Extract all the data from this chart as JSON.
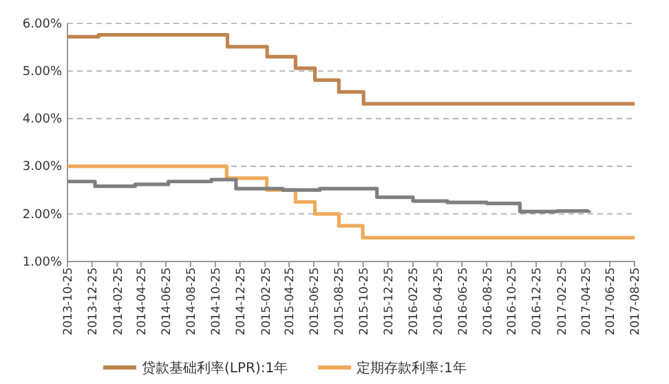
{
  "chart_data": {
    "type": "step",
    "ylim": [
      1,
      6
    ],
    "yticks": [
      {
        "value": 1,
        "label": "1.00%"
      },
      {
        "value": 2,
        "label": "2.00%"
      },
      {
        "value": 3,
        "label": "3.00%"
      },
      {
        "value": 4,
        "label": "4.00%"
      },
      {
        "value": 5,
        "label": "5.00%"
      },
      {
        "value": 6,
        "label": "6.00%"
      }
    ],
    "xlim": [
      "2013-10-25",
      "2017-08-25"
    ],
    "xticks": [
      "2013-10-25",
      "2013-12-25",
      "2014-02-25",
      "2014-04-25",
      "2014-06-25",
      "2014-08-25",
      "2014-10-25",
      "2014-12-25",
      "2015-02-25",
      "2015-04-25",
      "2015-06-25",
      "2015-08-25",
      "2015-10-25",
      "2015-12-25",
      "2016-02-25",
      "2016-04-25",
      "2016-06-25",
      "2016-08-25",
      "2016-10-25",
      "2016-12-25",
      "2017-02-25",
      "2017-04-25",
      "2017-06-25",
      "2017-08-25"
    ],
    "grid": "y",
    "legend": "bottom",
    "line_style": "solid",
    "marker": "none",
    "series": [
      {
        "name": "贷款基础利率(LPR):1年",
        "color": "#bf8550",
        "x": [
          "2013-10-25",
          "2014-01-10",
          "2014-11-24",
          "2015-03-02",
          "2015-05-11",
          "2015-06-28",
          "2015-08-26",
          "2015-10-26",
          "2017-08-25"
        ],
        "values": [
          5.72,
          5.76,
          5.51,
          5.3,
          5.06,
          4.81,
          4.56,
          4.31,
          4.31
        ]
      },
      {
        "name": "定期存款利率:1年",
        "color": "#f0aa5c",
        "x": [
          "2013-10-25",
          "2014-11-22",
          "2015-03-01",
          "2015-05-11",
          "2015-06-28",
          "2015-08-26",
          "2015-10-24",
          "2017-08-25"
        ],
        "values": [
          3.0,
          2.75,
          2.5,
          2.25,
          2.0,
          1.75,
          1.5,
          1.5
        ]
      },
      {
        "color": "#7f7f7f",
        "x": [
          "2013-10-25",
          "2014-01-01",
          "2014-04-10",
          "2014-07-01",
          "2014-10-15",
          "2014-12-15",
          "2015-04-10",
          "2015-07-10",
          "2015-11-28",
          "2016-02-25",
          "2016-05-20",
          "2016-08-25",
          "2016-11-15",
          "2017-02-15",
          "2017-05-05"
        ],
        "values": [
          2.68,
          2.58,
          2.62,
          2.68,
          2.72,
          2.53,
          2.5,
          2.53,
          2.35,
          2.27,
          2.24,
          2.22,
          2.05,
          2.06,
          2.07
        ]
      }
    ]
  }
}
